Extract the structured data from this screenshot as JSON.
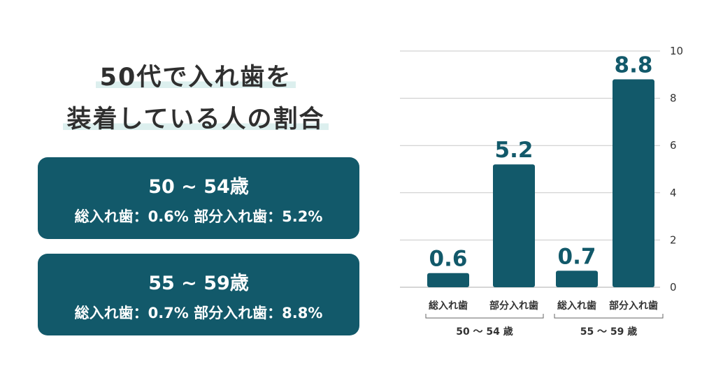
{
  "title": {
    "line1": "50代で入れ歯を",
    "line2": "装着している人の割合"
  },
  "cards": [
    {
      "age": "50 ~ 54歳",
      "detail": "総入れ歯：0.6% 部分入れ歯：5.2%"
    },
    {
      "age": "55 ~ 59歳",
      "detail": "総入れ歯：0.7% 部分入れ歯：8.8%"
    }
  ],
  "colors": {
    "bar": "#12596a",
    "grid": "#c8c8c8",
    "title_highlight": "#dcefee"
  },
  "chart_data": {
    "type": "bar",
    "categories": [
      "総入れ歯",
      "部分入れ歯",
      "総入れ歯",
      "部分入れ歯"
    ],
    "groups": [
      {
        "label": "50 〜 54 歳",
        "category_indices": [
          0,
          1
        ]
      },
      {
        "label": "55 〜 59 歳",
        "category_indices": [
          2,
          3
        ]
      }
    ],
    "values": [
      0.6,
      5.2,
      0.7,
      8.8
    ],
    "data_labels": [
      "0.6",
      "5.2",
      "0.7",
      "8.8"
    ],
    "y_ticks": [
      0,
      2,
      4,
      6,
      8,
      10
    ],
    "ylim": [
      0,
      10
    ],
    "y_axis_side": "right",
    "grid": true
  }
}
